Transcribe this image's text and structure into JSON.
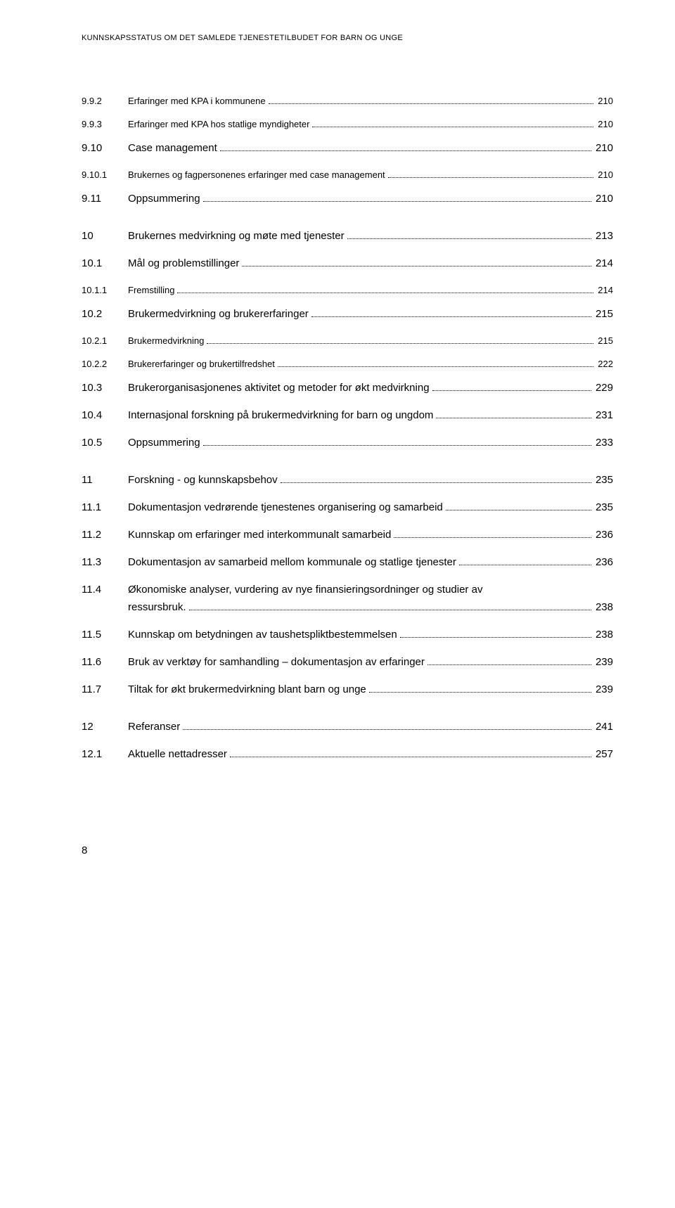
{
  "header": "KUNNSKAPSSTATUS OM DET SAMLEDE TJENESTETILBUDET FOR BARN OG UNGE",
  "entries": [
    {
      "num": "9.9.2",
      "label": "Erfaringer med KPA i kommunene",
      "page": "210",
      "level": 2
    },
    {
      "num": "9.9.3",
      "label": "Erfaringer med KPA hos statlige myndigheter",
      "page": "210",
      "level": 2
    },
    {
      "num": "9.10",
      "label": "Case management",
      "page": "210",
      "level": 1
    },
    {
      "num": "9.10.1",
      "label": "Brukernes og fagpersonenes erfaringer med case management",
      "page": "210",
      "level": 2
    },
    {
      "num": "9.11",
      "label": "Oppsummering",
      "page": "210",
      "level": 1
    },
    {
      "num": "10",
      "label": "Brukernes medvirkning og møte med  tjenester",
      "page": "213",
      "level": 0,
      "sectionStart": true
    },
    {
      "num": "10.1",
      "label": "Mål og problemstillinger",
      "page": "214",
      "level": 1
    },
    {
      "num": "10.1.1",
      "label": "Fremstilling",
      "page": "214",
      "level": 2
    },
    {
      "num": "10.2",
      "label": "Brukermedvirkning og brukererfaringer",
      "page": "215",
      "level": 1
    },
    {
      "num": "10.2.1",
      "label": "Brukermedvirkning",
      "page": "215",
      "level": 2
    },
    {
      "num": "10.2.2",
      "label": "Brukererfaringer og brukertilfredshet",
      "page": "222",
      "level": 2
    },
    {
      "num": "10.3",
      "label": "Brukerorganisasjonenes aktivitet og metoder for økt medvirkning",
      "page": "229",
      "level": 1
    },
    {
      "num": "10.4",
      "label": "Internasjonal forskning på brukermedvirkning for barn og ungdom",
      "page": "231",
      "level": 1
    },
    {
      "num": "10.5",
      "label": "Oppsummering",
      "page": "233",
      "level": 1
    },
    {
      "num": "11",
      "label": "Forskning - og kunnskapsbehov",
      "page": "235",
      "level": 0,
      "sectionStart": true
    },
    {
      "num": "11.1",
      "label": "Dokumentasjon vedrørende tjenestenes organisering og  samarbeid",
      "page": "235",
      "level": 1
    },
    {
      "num": "11.2",
      "label": "Kunnskap om erfaringer med interkommunalt samarbeid",
      "page": "236",
      "level": 1
    },
    {
      "num": "11.3",
      "label": "Dokumentasjon av samarbeid mellom kommunale og statlige  tjenester",
      "page": "236",
      "level": 1
    },
    {
      "num": "11.4",
      "label": "Økonomiske analyser, vurdering av nye finansieringsordninger og  studier av",
      "label2": "ressursbruk.",
      "page": "238",
      "level": 1,
      "twoLine": true
    },
    {
      "num": "11.5",
      "label": "Kunnskap om betydningen av taushetspliktbestemmelsen",
      "page": "238",
      "level": 1
    },
    {
      "num": "11.6",
      "label": "Bruk av verktøy for samhandling – dokumentasjon av erfaringer",
      "page": "239",
      "level": 1
    },
    {
      "num": "11.7",
      "label": "Tiltak for økt brukermedvirkning blant barn og unge",
      "page": "239",
      "level": 1
    },
    {
      "num": "12",
      "label": "Referanser",
      "page": "241",
      "level": 0,
      "sectionStart": true
    },
    {
      "num": "12.1",
      "label": "Aktuelle nettadresser",
      "page": "257",
      "level": 1
    }
  ],
  "pageNumber": "8",
  "style": {
    "bodyWidth": 960,
    "bodyHeight": 1718,
    "textColor": "#000000",
    "backgroundColor": "#ffffff",
    "baseFontSize": 15,
    "smallFontSize": 13,
    "headerFontSize": 11,
    "fontFamily": "Arial, Helvetica, sans-serif"
  }
}
